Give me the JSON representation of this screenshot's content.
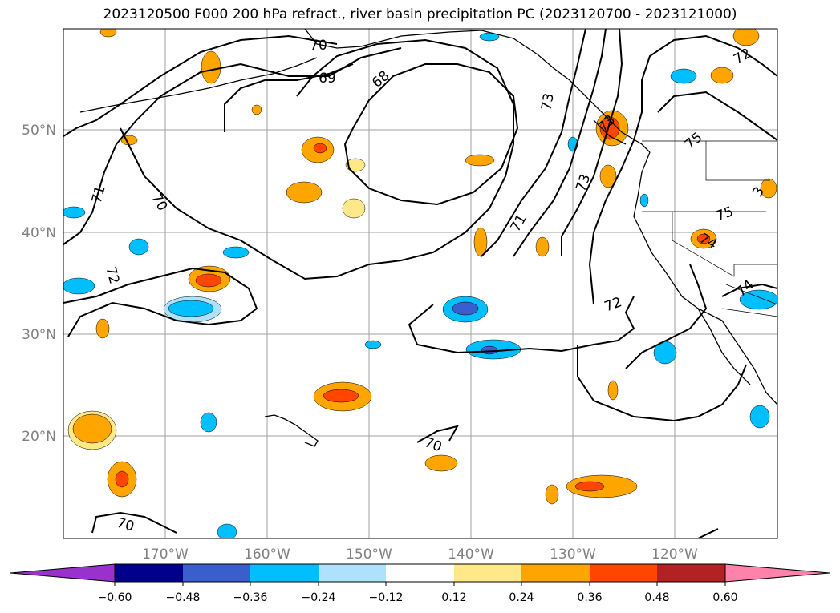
{
  "title": "2023120500 F000 200 hPa refract., river basin precipitation PC (2023120700 - 2023121000)",
  "map": {
    "lat_labels": [
      "50°N",
      "40°N",
      "30°N",
      "20°N"
    ],
    "lon_labels": [
      "170°W",
      "160°W",
      "150°W",
      "140°W",
      "130°W",
      "120°W"
    ],
    "contour_labels": [
      "70",
      "69",
      "68",
      "71",
      "70",
      "72",
      "71",
      "73",
      "72",
      "73",
      "75",
      "75",
      "74",
      "74",
      "72",
      "70",
      "70",
      "73",
      "3"
    ],
    "colors": {
      "coast": "#000000",
      "grid": "#a0a0a0",
      "pos_1": "#ffe88a",
      "pos_2": "#ffa500",
      "pos_3": "#ff4500",
      "neg_1": "#aee2fb",
      "neg_2": "#00bfff",
      "neg_3": "#3a5fcd"
    }
  },
  "colorbar": {
    "ticks": [
      "−0.60",
      "−0.48",
      "−0.36",
      "−0.24",
      "−0.12",
      "0.12",
      "0.24",
      "0.36",
      "0.48",
      "0.60"
    ],
    "colors": [
      "#9932cc",
      "#00008b",
      "#3a5fcd",
      "#00bfff",
      "#aee2fb",
      "#ffffff",
      "#ffe88a",
      "#ffa500",
      "#ff4500",
      "#b22222",
      "#ff82ab"
    ]
  }
}
